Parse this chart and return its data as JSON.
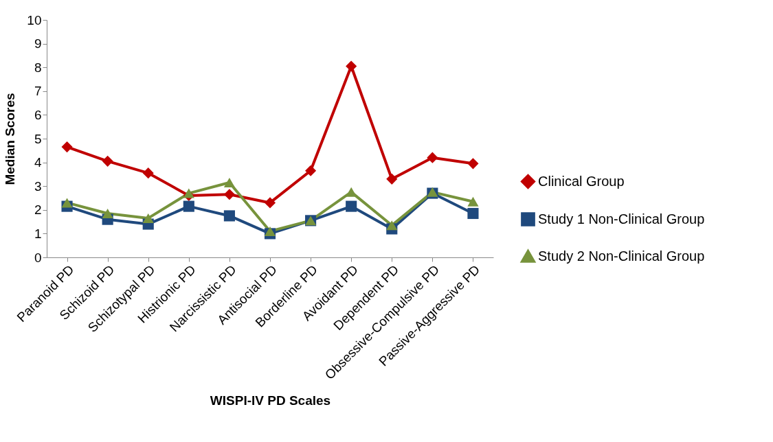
{
  "chart_data": {
    "type": "line",
    "xlabel": "WISPI-IV PD Scales",
    "ylabel": "Median Scores",
    "categories": [
      "Paranoid PD",
      "Schizoid PD",
      "Schizotypal PD",
      "Histrionic PD",
      "Narcissistic PD",
      "Antisocial PD",
      "Borderline PD",
      "Avoidant PD",
      "Dependent PD",
      "Obsessive-Compulsive PD",
      "Passive-Aggressive PD"
    ],
    "series": [
      {
        "name": "Clinical Group",
        "color": "#c00000",
        "marker": "diamond",
        "values": [
          4.65,
          4.05,
          3.55,
          2.6,
          2.65,
          2.3,
          3.65,
          8.05,
          3.3,
          4.2,
          3.95
        ]
      },
      {
        "name": "Study 1 Non-Clinical Group",
        "color": "#1f497d",
        "marker": "square",
        "values": [
          2.15,
          1.6,
          1.4,
          2.15,
          1.75,
          1.0,
          1.55,
          2.15,
          1.2,
          2.7,
          1.85
        ]
      },
      {
        "name": "Study 2 Non-Clinical Group",
        "color": "#77933c",
        "marker": "triangle",
        "values": [
          2.3,
          1.85,
          1.65,
          2.7,
          3.15,
          1.1,
          1.55,
          2.75,
          1.35,
          2.75,
          2.35
        ]
      }
    ],
    "ylim": [
      0,
      10
    ],
    "yticks": [
      0,
      1,
      2,
      3,
      4,
      5,
      6,
      7,
      8,
      9,
      10
    ],
    "grid": false,
    "legend": "right"
  }
}
